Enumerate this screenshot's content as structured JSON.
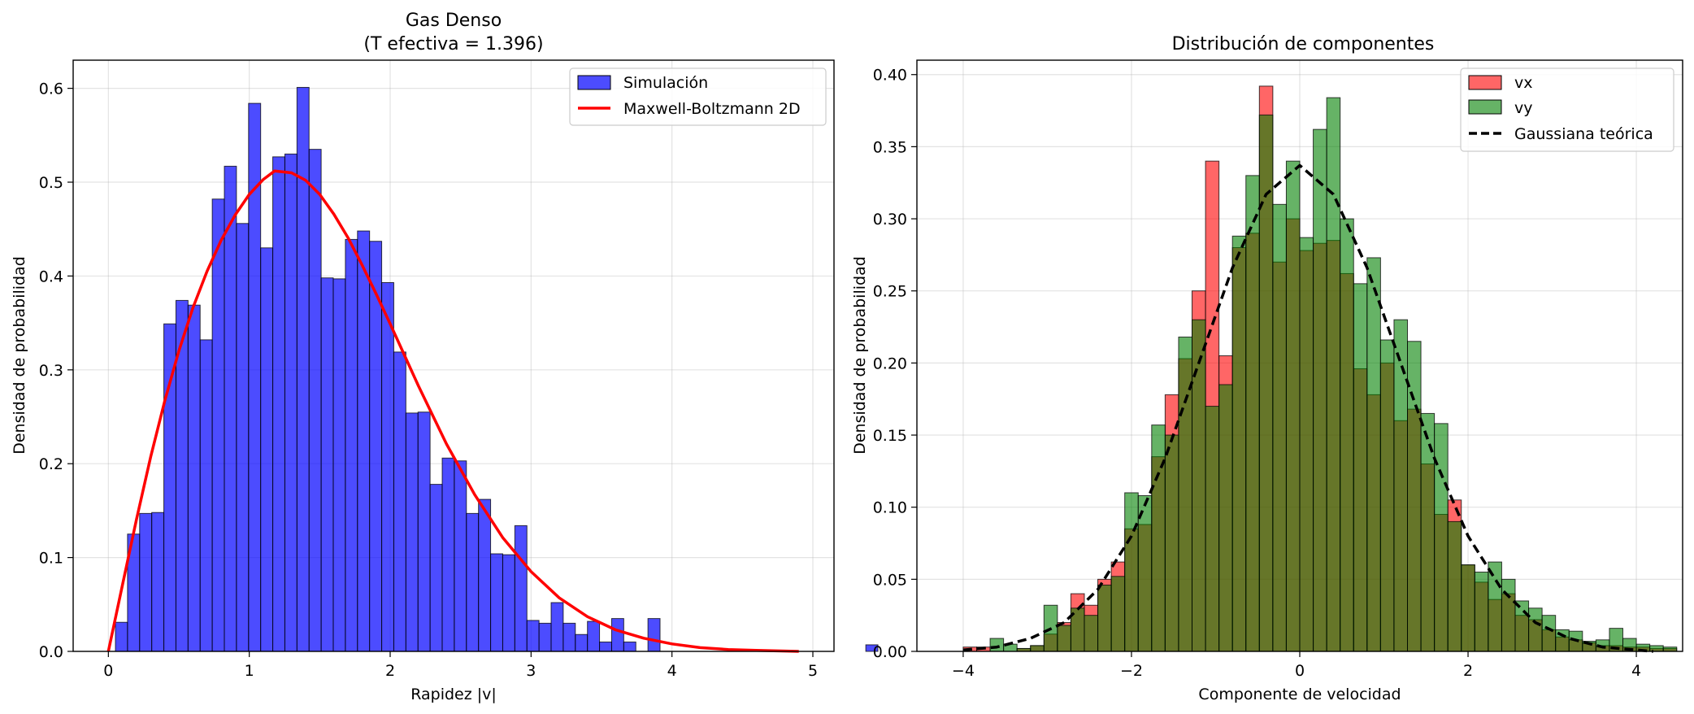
{
  "charts": [
    {
      "title_line1": "Gas Denso",
      "title_line2": "(T efectiva = 1.396)",
      "xlabel": "Rapidez |v|",
      "ylabel": "Densidad de probabilidad"
    },
    {
      "title_line1": "Distribución de componentes",
      "xlabel": "Componente de velocidad",
      "ylabel": "Densidad de probabilidad"
    }
  ],
  "chart_data": [
    {
      "type": "bar",
      "title": "Gas Denso (T efectiva = 1.396)",
      "xlabel": "Rapidez |v|",
      "ylabel": "Densidad de probabilidad",
      "xlim": [
        -0.25,
        5.15
      ],
      "ylim": [
        0,
        0.63
      ],
      "xticks": [
        0,
        1,
        2,
        3,
        4,
        5
      ],
      "yticks": [
        0.0,
        0.1,
        0.2,
        0.3,
        0.4,
        0.5,
        0.6
      ],
      "grid": true,
      "legend_position": "top-right",
      "bin_start": 0.05,
      "bin_width": 0.0859,
      "series": [
        {
          "name": "Simulación",
          "kind": "histogram",
          "color": "#0000ff",
          "edge": "#000000",
          "values": [
            0.031,
            0.125,
            0.147,
            0.148,
            0.349,
            0.374,
            0.369,
            0.332,
            0.482,
            0.517,
            0.456,
            0.584,
            0.43,
            0.527,
            0.53,
            0.601,
            0.535,
            0.398,
            0.397,
            0.439,
            0.448,
            0.437,
            0.393,
            0.319,
            0.254,
            0.255,
            0.178,
            0.206,
            0.203,
            0.147,
            0.162,
            0.104,
            0.103,
            0.134,
            0.033,
            0.03,
            0.052,
            0.03,
            0.018,
            0.032,
            0.01,
            0.035,
            0.01,
            0.0,
            0.035,
            0.0,
            0.0,
            0.0,
            0.0,
            0.0,
            0.0,
            0.0,
            0.0,
            0.0,
            0.0,
            0.0,
            0.0,
            0.0,
            0.0,
            0.0,
            0.0,
            0.0,
            0.007
          ]
        },
        {
          "name": "Maxwell-Boltzmann 2D",
          "kind": "line",
          "color": "#ff0000",
          "x": [
            0.0,
            0.1,
            0.2,
            0.3,
            0.4,
            0.5,
            0.6,
            0.7,
            0.8,
            0.9,
            1.0,
            1.1,
            1.18,
            1.3,
            1.4,
            1.5,
            1.6,
            1.7,
            1.8,
            1.9,
            2.0,
            2.2,
            2.4,
            2.6,
            2.8,
            3.0,
            3.2,
            3.4,
            3.6,
            3.8,
            4.0,
            4.2,
            4.4,
            4.6,
            4.9
          ],
          "y": [
            0.0,
            0.071,
            0.141,
            0.207,
            0.267,
            0.32,
            0.366,
            0.405,
            0.438,
            0.465,
            0.487,
            0.503,
            0.512,
            0.51,
            0.502,
            0.487,
            0.466,
            0.441,
            0.412,
            0.381,
            0.349,
            0.283,
            0.221,
            0.167,
            0.121,
            0.085,
            0.057,
            0.037,
            0.023,
            0.014,
            0.008,
            0.004,
            0.002,
            0.001,
            0.0
          ]
        }
      ]
    },
    {
      "type": "bar",
      "title": "Distribución de componentes",
      "xlabel": "Componente de velocidad",
      "ylabel": "Densidad de probabilidad",
      "xlim": [
        -4.55,
        4.55
      ],
      "ylim": [
        0,
        0.41
      ],
      "xticks": [
        -4,
        -2,
        0,
        2,
        4
      ],
      "xticklabels": [
        "−4",
        "−2",
        "0",
        "2",
        "4"
      ],
      "yticks": [
        0.0,
        0.05,
        0.1,
        0.15,
        0.2,
        0.25,
        0.3,
        0.35,
        0.4
      ],
      "grid": true,
      "legend_position": "top-right",
      "bin_start": -4.0,
      "bin_width": 0.16,
      "series": [
        {
          "name": "vx",
          "kind": "histogram",
          "color": "#ff0000",
          "edge": "#000000",
          "values": [
            0.003,
            0.003,
            0.0,
            0.0,
            0.002,
            0.004,
            0.012,
            0.02,
            0.04,
            0.032,
            0.05,
            0.062,
            0.085,
            0.088,
            0.135,
            0.178,
            0.203,
            0.25,
            0.34,
            0.205,
            0.28,
            0.29,
            0.392,
            0.27,
            0.3,
            0.278,
            0.283,
            0.285,
            0.262,
            0.196,
            0.178,
            0.2,
            0.16,
            0.168,
            0.13,
            0.095,
            0.105,
            0.06,
            0.048,
            0.036,
            0.04,
            0.025,
            0.022,
            0.015,
            0.01,
            0.008,
            0.006,
            0.004,
            0.004,
            0.003,
            0.003,
            0.002,
            0.002,
            0.0
          ]
        },
        {
          "name": "vy",
          "kind": "histogram",
          "color": "#008000",
          "edge": "#000000",
          "values": [
            0.0,
            0.0,
            0.009,
            0.005,
            0.002,
            0.004,
            0.032,
            0.018,
            0.03,
            0.025,
            0.046,
            0.052,
            0.11,
            0.108,
            0.157,
            0.15,
            0.218,
            0.23,
            0.17,
            0.185,
            0.288,
            0.33,
            0.372,
            0.31,
            0.34,
            0.287,
            0.362,
            0.384,
            0.3,
            0.255,
            0.273,
            0.216,
            0.23,
            0.215,
            0.165,
            0.158,
            0.09,
            0.06,
            0.055,
            0.062,
            0.05,
            0.035,
            0.03,
            0.025,
            0.015,
            0.014,
            0.007,
            0.008,
            0.016,
            0.009,
            0.005,
            0.004,
            0.003,
            0.0
          ]
        },
        {
          "name": "Gaussiana teórica",
          "kind": "line",
          "color": "#000000",
          "style": "dashed",
          "x": [
            -4.0,
            -3.6,
            -3.2,
            -2.8,
            -2.4,
            -2.0,
            -1.6,
            -1.2,
            -0.8,
            -0.4,
            0.0,
            0.4,
            0.8,
            1.2,
            1.6,
            2.0,
            2.4,
            2.8,
            3.2,
            3.6,
            4.2
          ],
          "y": [
            0.001,
            0.003,
            0.009,
            0.02,
            0.043,
            0.08,
            0.134,
            0.2,
            0.266,
            0.317,
            0.337,
            0.317,
            0.266,
            0.2,
            0.134,
            0.08,
            0.043,
            0.02,
            0.009,
            0.003,
            0.0
          ]
        }
      ]
    }
  ]
}
